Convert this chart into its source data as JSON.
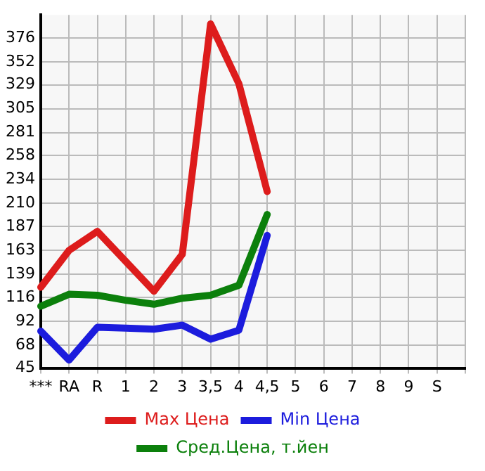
{
  "chart_data": {
    "type": "line",
    "categories": [
      "***",
      "RA",
      "R",
      "1",
      "2",
      "3",
      "3,5",
      "4",
      "4,5",
      "5",
      "6",
      "7",
      "8",
      "9",
      "S",
      null
    ],
    "series": [
      {
        "name": "Max Цена",
        "color": "#dd1c1c",
        "values": [
          126,
          163,
          182,
          152,
          122,
          159,
          390,
          330,
          222,
          null,
          null,
          null,
          null,
          null,
          null,
          null
        ]
      },
      {
        "name": "Min Цена",
        "color": "#1c1cdd",
        "values": [
          82,
          53,
          86,
          85,
          84,
          88,
          74,
          83,
          178,
          null,
          null,
          null,
          null,
          null,
          null,
          null
        ]
      },
      {
        "name": "Сред.Цена, т.йен",
        "color": "#0c800c",
        "values": [
          107,
          119,
          118,
          113,
          109,
          115,
          118,
          128,
          199,
          null,
          null,
          null,
          null,
          null,
          null,
          null
        ]
      }
    ],
    "ylim": [
      45,
      399
    ],
    "yticks": [
      45,
      68,
      92,
      116,
      139,
      163,
      187,
      210,
      234,
      258,
      281,
      305,
      329,
      352,
      376
    ],
    "grid": true,
    "legend": "bottom",
    "marker": "none",
    "line_style": "solid"
  }
}
